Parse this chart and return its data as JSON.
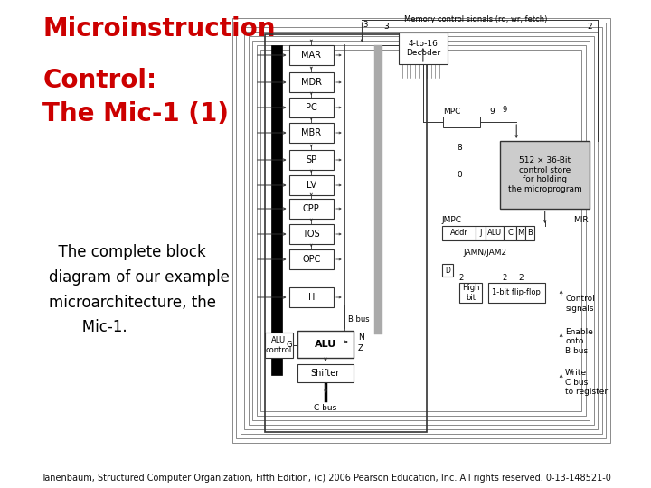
{
  "title_line1": "Microinstruction",
  "title_line2": "Control:",
  "title_line3": "The Mic-1 (1)",
  "title_color": "#cc0000",
  "title_fontsize": 20,
  "body_text": "  The complete block\ndiagram of our example\nmicroarchitecture, the\n        Mic-1.",
  "body_fontsize": 12,
  "body_color": "#000000",
  "footer_text": "Tanenbaum, Structured Computer Organization, Fifth Edition, (c) 2006 Pearson Education, Inc. All rights reserved. 0-13-148521-0",
  "footer_fontsize": 7,
  "bg_color": "#ffffff"
}
